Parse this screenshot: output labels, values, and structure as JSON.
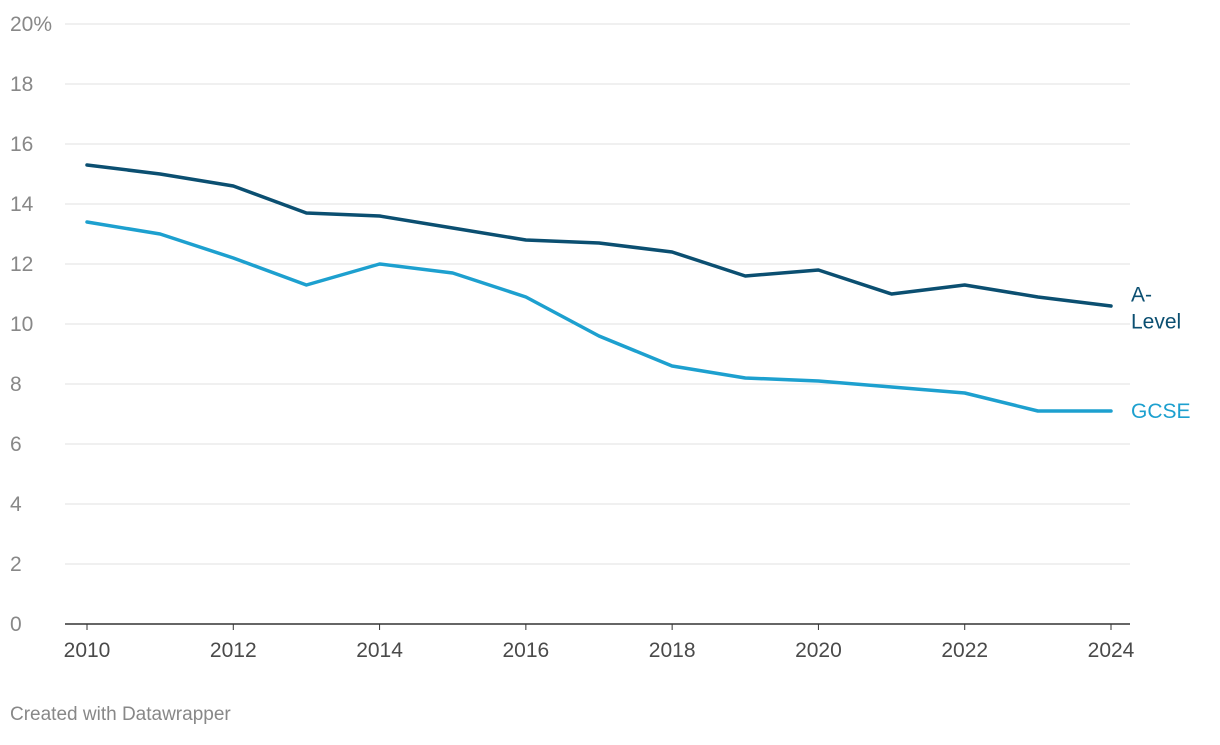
{
  "chart_data": {
    "type": "line",
    "title": "",
    "xlabel": "",
    "ylabel": "",
    "x": [
      2010,
      2011,
      2012,
      2013,
      2014,
      2015,
      2016,
      2017,
      2018,
      2019,
      2020,
      2021,
      2022,
      2023,
      2024
    ],
    "xticks": [
      "2010",
      "2012",
      "2014",
      "2016",
      "2018",
      "2020",
      "2022",
      "2024"
    ],
    "yticks": [
      "0",
      "2",
      "4",
      "6",
      "8",
      "10",
      "12",
      "14",
      "16",
      "18",
      "20%"
    ],
    "ylim": [
      0,
      20
    ],
    "xlim": [
      2010,
      2024
    ],
    "grid": true,
    "legend": "inline labels at line ends",
    "series": [
      {
        "name": "A-Level",
        "label_lines": [
          "A-",
          "Level"
        ],
        "color": "#0b4f71",
        "values": [
          15.3,
          15.0,
          14.6,
          13.7,
          13.6,
          13.2,
          12.8,
          12.7,
          12.4,
          11.6,
          11.8,
          11.0,
          11.3,
          10.9,
          10.6
        ]
      },
      {
        "name": "GCSE",
        "label_lines": [
          "GCSE"
        ],
        "color": "#1da0cf",
        "values": [
          13.4,
          13.0,
          12.2,
          11.3,
          12.0,
          11.7,
          10.9,
          9.6,
          8.6,
          8.2,
          8.1,
          7.9,
          7.7,
          7.1,
          7.1
        ]
      }
    ]
  },
  "footer": {
    "credit": "Created with Datawrapper"
  }
}
